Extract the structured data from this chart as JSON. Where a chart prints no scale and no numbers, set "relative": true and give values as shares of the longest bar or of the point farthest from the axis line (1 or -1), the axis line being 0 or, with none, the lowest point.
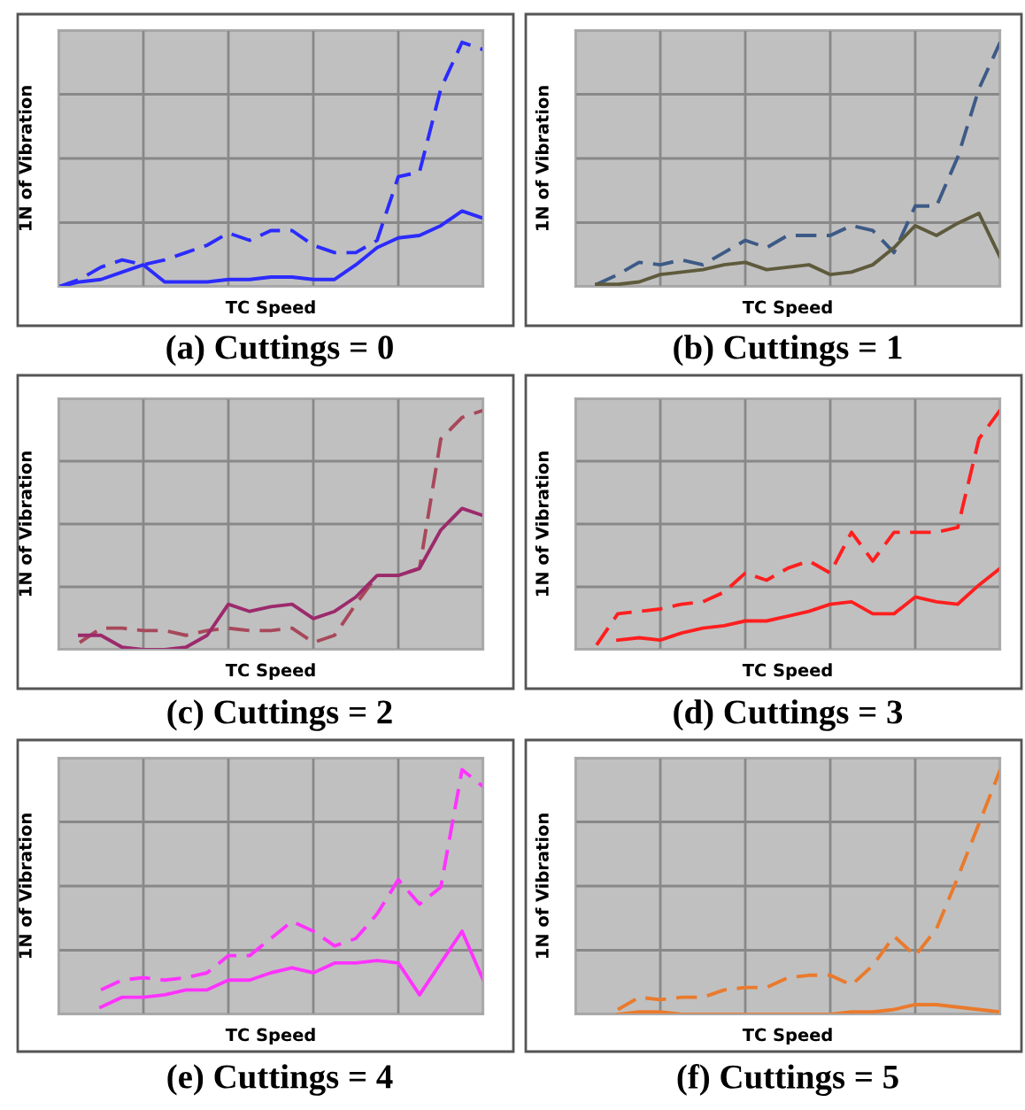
{
  "chart_data": [
    {
      "type": "line",
      "title": "(a) Cuttings = 0",
      "xlabel": "TC Speed",
      "ylabel": "1N of Vibration",
      "relative": true,
      "grid": true,
      "categories": [
        null,
        null,
        null,
        null,
        null,
        null,
        null,
        null,
        null,
        null,
        null,
        null,
        null,
        null,
        null,
        null,
        null,
        null,
        null,
        null,
        null
      ],
      "series": [
        {
          "color": "#2b2bff",
          "line_style": "dashed",
          "values": [
            0,
            0.03,
            0.08,
            0.11,
            0.09,
            0.11,
            0.14,
            0.17,
            0.22,
            0.19,
            0.23,
            0.23,
            0.17,
            0.14,
            0.14,
            0.19,
            0.45,
            0.47,
            0.81,
            1,
            0.97
          ]
        },
        {
          "color": "#2b2bff",
          "line_style": "solid",
          "values": [
            0,
            0.02,
            0.03,
            0.06,
            0.09,
            0.02,
            0.02,
            0.02,
            0.03,
            0.03,
            0.04,
            0.04,
            0.03,
            0.03,
            0.09,
            0.16,
            0.2,
            0.21,
            0.25,
            0.31,
            0.28
          ]
        }
      ]
    },
    {
      "type": "line",
      "title": "(b) Cuttings = 1",
      "xlabel": "TC Speed",
      "ylabel": "1N of Vibration",
      "relative": true,
      "grid": true,
      "categories": [
        null,
        null,
        null,
        null,
        null,
        null,
        null,
        null,
        null,
        null,
        null,
        null,
        null,
        null,
        null,
        null,
        null,
        null,
        null,
        null,
        null
      ],
      "series": [
        {
          "color": "#3d5a86",
          "line_style": "dashed",
          "values": [
            null,
            0.01,
            0.05,
            0.1,
            0.09,
            0.11,
            0.09,
            0.14,
            0.19,
            0.16,
            0.21,
            0.21,
            0.21,
            0.25,
            0.23,
            0.14,
            0.33,
            0.33,
            0.53,
            0.81,
            1
          ]
        },
        {
          "color": "#5e5a3c",
          "line_style": "solid",
          "values": [
            null,
            0.01,
            0.01,
            0.02,
            0.05,
            0.06,
            0.07,
            0.09,
            0.1,
            0.07,
            0.08,
            0.09,
            0.05,
            0.06,
            0.09,
            0.16,
            0.25,
            0.21,
            0.26,
            0.3,
            0.12
          ]
        }
      ]
    },
    {
      "type": "line",
      "title": "(c) Cuttings = 2",
      "xlabel": "TC Speed",
      "ylabel": "1N of Vibration",
      "relative": true,
      "grid": true,
      "categories": [
        null,
        null,
        null,
        null,
        null,
        null,
        null,
        null,
        null,
        null,
        null,
        null,
        null,
        null,
        null,
        null,
        null,
        null,
        null,
        null,
        null
      ],
      "series": [
        {
          "color": "#a8485a",
          "line_style": "dashed",
          "values": [
            null,
            0.03,
            0.09,
            0.09,
            0.08,
            0.08,
            0.06,
            0.08,
            0.09,
            0.08,
            0.08,
            0.09,
            0.03,
            0.06,
            0.19,
            0.31,
            0.31,
            0.34,
            0.88,
            0.97,
            1
          ]
        },
        {
          "color": "#9c2a6c",
          "line_style": "solid",
          "values": [
            null,
            0.06,
            0.06,
            0.01,
            0,
            0,
            0.01,
            0.06,
            0.19,
            0.16,
            0.18,
            0.19,
            0.13,
            0.16,
            0.22,
            0.31,
            0.31,
            0.34,
            0.5,
            0.59,
            0.56
          ]
        }
      ]
    },
    {
      "type": "line",
      "title": "(d) Cuttings = 3",
      "xlabel": "TC Speed",
      "ylabel": "1N of Vibration",
      "relative": true,
      "grid": true,
      "categories": [
        null,
        null,
        null,
        null,
        null,
        null,
        null,
        null,
        null,
        null,
        null,
        null,
        null,
        null,
        null,
        null,
        null,
        null,
        null,
        null,
        null
      ],
      "series": [
        {
          "color": "#ff1f1f",
          "line_style": "dashed",
          "values": [
            null,
            0.02,
            0.15,
            0.16,
            0.17,
            0.19,
            0.2,
            0.24,
            0.32,
            0.29,
            0.34,
            0.37,
            0.32,
            0.49,
            0.37,
            0.49,
            0.49,
            0.49,
            0.51,
            0.88,
            1
          ]
        },
        {
          "color": "#ff1f1f",
          "line_style": "solid",
          "values": [
            null,
            null,
            0.04,
            0.05,
            0.04,
            0.07,
            0.09,
            0.1,
            0.12,
            0.12,
            0.14,
            0.16,
            0.19,
            0.2,
            0.15,
            0.15,
            0.22,
            0.2,
            0.19,
            0.27,
            0.34
          ]
        }
      ]
    },
    {
      "type": "line",
      "title": "(e) Cuttings = 4",
      "xlabel": "TC Speed",
      "ylabel": "1N of Vibration",
      "relative": true,
      "grid": true,
      "categories": [
        null,
        null,
        null,
        null,
        null,
        null,
        null,
        null,
        null,
        null,
        null,
        null,
        null,
        null,
        null,
        null,
        null,
        null,
        null,
        null,
        null
      ],
      "series": [
        {
          "color": "#ff33ff",
          "line_style": "dashed",
          "values": [
            null,
            null,
            0.1,
            0.14,
            0.15,
            0.14,
            0.15,
            0.17,
            0.24,
            0.24,
            0.31,
            0.38,
            0.34,
            0.28,
            0.31,
            0.41,
            0.55,
            0.45,
            0.52,
            1,
            0.93
          ]
        },
        {
          "color": "#ff33ff",
          "line_style": "solid",
          "values": [
            null,
            null,
            0.03,
            0.07,
            0.07,
            0.08,
            0.1,
            0.1,
            0.14,
            0.14,
            0.17,
            0.19,
            0.17,
            0.21,
            0.21,
            0.22,
            0.21,
            0.08,
            0.21,
            0.34,
            0.14
          ]
        }
      ]
    },
    {
      "type": "line",
      "title": "(f) Cuttings = 5",
      "xlabel": "TC Speed",
      "ylabel": "1N of Vibration",
      "relative": true,
      "grid": true,
      "categories": [
        null,
        null,
        null,
        null,
        null,
        null,
        null,
        null,
        null,
        null,
        null,
        null,
        null,
        null,
        null,
        null,
        null,
        null,
        null,
        null,
        null
      ],
      "series": [
        {
          "color": "#ea7a2c",
          "line_style": "dashed",
          "values": [
            null,
            null,
            0.02,
            0.07,
            0.06,
            0.07,
            0.07,
            0.1,
            0.11,
            0.11,
            0.15,
            0.16,
            0.16,
            0.12,
            0.2,
            0.32,
            0.24,
            0.35,
            0.56,
            0.78,
            1
          ]
        },
        {
          "color": "#ea7a2c",
          "line_style": "solid",
          "values": [
            null,
            null,
            0,
            0.01,
            0.01,
            0,
            0,
            0,
            0,
            0,
            0,
            0,
            0,
            0.01,
            0.01,
            0.02,
            0.04,
            0.04,
            0.03,
            0.02,
            0.01
          ]
        }
      ]
    }
  ]
}
